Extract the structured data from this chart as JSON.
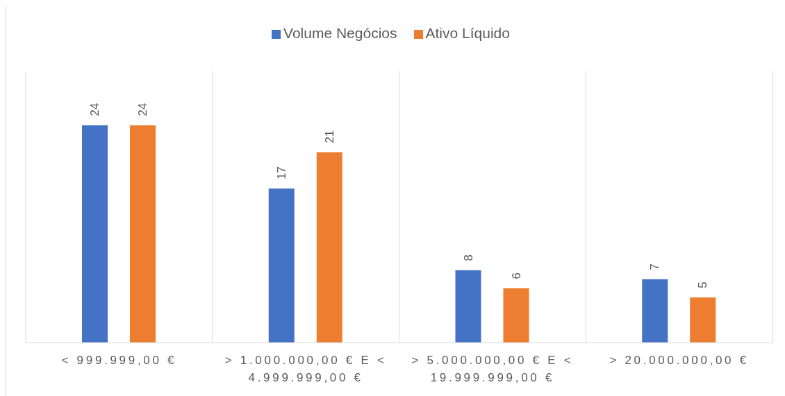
{
  "chart_data": {
    "type": "bar",
    "categories": [
      "< 999.999,00 €",
      "> 1.000.000,00 € E < 4.999.999,00 €",
      "> 5.000.000,00 € E < 19.999.999,00 €",
      "> 20.000.000,00 €"
    ],
    "series": [
      {
        "name": "Volume Negócios",
        "color": "#4472c4",
        "values": [
          24,
          17,
          8,
          7
        ]
      },
      {
        "name": "Ativo Líquido",
        "color": "#ed7d31",
        "values": [
          24,
          21,
          6,
          5
        ]
      }
    ],
    "data_labels": true,
    "legend": "top",
    "grid": "x",
    "tick_labels": "x"
  }
}
